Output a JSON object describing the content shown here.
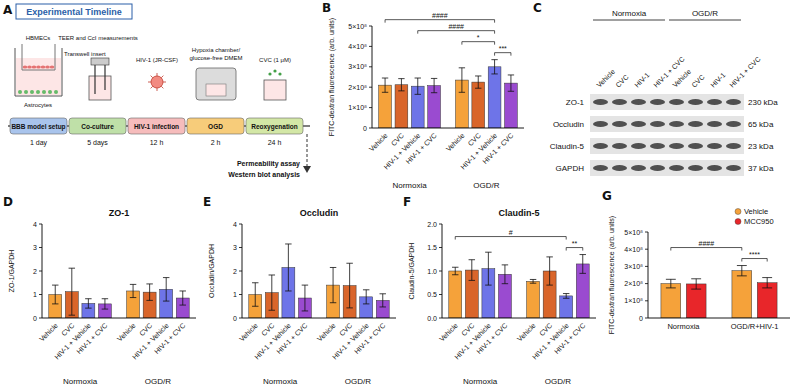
{
  "timeline": {
    "panel": "A",
    "title": "Experimental Timeline",
    "steps": [
      {
        "label": "BBB model setup",
        "duration": "1 day"
      },
      {
        "label": "Co-culture",
        "duration": "5 days"
      },
      {
        "label": "HIV-1 infection",
        "duration": "12 h"
      },
      {
        "label": "OGD",
        "duration": "2 h"
      },
      {
        "label": "Reoxygenation",
        "duration": "24 h"
      }
    ],
    "cells": [
      "HBMECs",
      "Astrocytes"
    ],
    "insert": "Transwell insert",
    "measurement": "TEER and CcI measurements",
    "virus": "HIV-1 (JR-CSF)",
    "hypoxia": [
      "Hypoxia chamber/",
      "glucose-free DMEM"
    ],
    "treatment": "CVC (1 μM)",
    "outputs": [
      "Permeability assay",
      "Western blot analysis"
    ]
  },
  "blot": {
    "panel": "C",
    "groups": [
      "Normoxia",
      "OGD/R"
    ],
    "lanes": [
      "Vehicle",
      "CVC",
      "HIV-1",
      "HIV-1 + CVC",
      "Vehicle",
      "CVC",
      "HIV-1",
      "HIV-1 + CVC"
    ],
    "rows": [
      {
        "protein": "ZO-1",
        "size": "230 kDa"
      },
      {
        "protein": "Occludin",
        "size": "65 kDa"
      },
      {
        "protein": "Claudin-5",
        "size": "23 kDa"
      },
      {
        "protein": "GAPDH",
        "size": "37 kDa"
      }
    ]
  },
  "chart_data": [
    {
      "panel": "B",
      "type": "bar",
      "y_label": "FITC-dextran fluorescence (arb. units)",
      "categories": [
        "Vehicle",
        "CVC",
        "HIV-1 + Vehicle",
        "HIV-1 + CVC",
        "Vehicle",
        "CVC",
        "HIV-1 + Vehicle",
        "HIV-1 + CVC"
      ],
      "groups": [
        "Normoxia",
        "OGD/R"
      ],
      "values": [
        210000000,
        212000000,
        205000000,
        208000000,
        235000000,
        225000000,
        300000000,
        220000000
      ],
      "errors": [
        35000000,
        30000000,
        40000000,
        35000000,
        60000000,
        30000000,
        35000000,
        40000000
      ],
      "colors": [
        "#F5A23A",
        "#D9652A",
        "#6E74E8",
        "#9A4BD0",
        "#F5A23A",
        "#D9652A",
        "#6E74E8",
        "#9A4BD0"
      ],
      "ylim": [
        0,
        500000000
      ],
      "yticks": [
        0,
        {
          "value": 100000000,
          "label": "1×10⁸"
        },
        {
          "value": 200000000,
          "label": "2×10⁸"
        },
        {
          "value": 300000000,
          "label": "3×10⁸"
        },
        {
          "value": 400000000,
          "label": "4×10⁸"
        },
        {
          "value": 500000000,
          "label": "5×10⁸"
        }
      ],
      "annotations": [
        {
          "text": "####",
          "between": [
            0,
            6
          ]
        },
        {
          "text": "####",
          "between": [
            2,
            6
          ]
        },
        {
          "text": "*",
          "between": [
            4,
            6
          ]
        },
        {
          "text": "***",
          "between": [
            6,
            7
          ]
        }
      ]
    },
    {
      "panel": "D",
      "type": "bar",
      "title": "ZO-1",
      "y_label": "ZO-1/GAPDH",
      "categories": [
        "Vehicle",
        "CVC",
        "HIV-1 + Vehicle",
        "HIV-1 + CVC",
        "Vehicle",
        "CVC",
        "HIV-1 + Vehicle",
        "HIV-1 + CVC"
      ],
      "groups": [
        "Normoxia",
        "OGD/R"
      ],
      "values": [
        1.0,
        1.12,
        0.62,
        0.6,
        1.15,
        1.1,
        1.22,
        0.85
      ],
      "errors": [
        0.4,
        1.0,
        0.2,
        0.22,
        0.28,
        0.35,
        0.5,
        0.3
      ],
      "colors": [
        "#F5A23A",
        "#D9652A",
        "#6E74E8",
        "#9A4BD0",
        "#F5A23A",
        "#D9652A",
        "#6E74E8",
        "#9A4BD0"
      ],
      "ylim": [
        0,
        4
      ],
      "yticks": [
        0,
        1,
        2,
        3,
        4
      ]
    },
    {
      "panel": "E",
      "type": "bar",
      "title": "Occludin",
      "y_label": "Occludin/GAPDH",
      "categories": [
        "Vehicle",
        "CVC",
        "HIV-1 + Vehicle",
        "HIV-1 + CVC",
        "Vehicle",
        "CVC",
        "HIV-1 + Vehicle",
        "HIV-1 + CVC"
      ],
      "groups": [
        "Normoxia",
        "OGD/R"
      ],
      "values": [
        1.0,
        1.08,
        2.15,
        0.85,
        1.4,
        1.38,
        0.9,
        0.75
      ],
      "errors": [
        0.5,
        0.75,
        1.0,
        0.55,
        0.75,
        0.95,
        0.3,
        0.28
      ],
      "colors": [
        "#F5A23A",
        "#D9652A",
        "#6E74E8",
        "#9A4BD0",
        "#F5A23A",
        "#D9652A",
        "#6E74E8",
        "#9A4BD0"
      ],
      "ylim": [
        0,
        4
      ],
      "yticks": [
        0,
        1,
        2,
        3,
        4
      ]
    },
    {
      "panel": "F",
      "type": "bar",
      "title": "Claudin-5",
      "y_label": "Claudin-5/GAPDH",
      "categories": [
        "Vehicle",
        "CVC",
        "HIV-1 + Vehicle",
        "HIV-1 + CVC",
        "Vehicle",
        "CVC",
        "HIV-1 + Vehicle",
        "HIV-1 + CVC"
      ],
      "groups": [
        "Normoxia",
        "OGD/R"
      ],
      "values": [
        1.0,
        1.02,
        1.05,
        0.93,
        0.78,
        1.0,
        0.47,
        1.15
      ],
      "errors": [
        0.08,
        0.22,
        0.35,
        0.2,
        0.04,
        0.3,
        0.05,
        0.2
      ],
      "colors": [
        "#F5A23A",
        "#D9652A",
        "#6E74E8",
        "#9A4BD0",
        "#F5A23A",
        "#D9652A",
        "#6E74E8",
        "#9A4BD0"
      ],
      "ylim": [
        0,
        2
      ],
      "yticks": [
        {
          "value": 0,
          "label": "0.0"
        },
        0.5,
        {
          "value": 1,
          "label": "1.0"
        },
        1.5,
        {
          "value": 2,
          "label": "2.0"
        }
      ],
      "annotations": [
        {
          "text": "#",
          "between": [
            0,
            6
          ]
        },
        {
          "text": "**",
          "between": [
            6,
            7
          ]
        }
      ]
    },
    {
      "panel": "G",
      "type": "bar",
      "y_label": "FITC-dextran fluorescence (arb. units)",
      "categories": [
        "Normoxia",
        "OGD/R+HIV-1"
      ],
      "series": [
        {
          "name": "Vehicle",
          "color": "#F5A23A",
          "values": [
            200000000,
            275000000
          ],
          "errors": [
            25000000,
            30000000
          ]
        },
        {
          "name": "MCC950",
          "color": "#E8262A",
          "values": [
            198000000,
            205000000
          ],
          "errors": [
            30000000,
            30000000
          ]
        }
      ],
      "legend": "top-right",
      "ylim": [
        0,
        500000000
      ],
      "yticks": [
        0,
        {
          "value": 100000000,
          "label": "1×10⁸"
        },
        {
          "value": 200000000,
          "label": "2×10⁸"
        },
        {
          "value": 300000000,
          "label": "3×10⁸"
        },
        {
          "value": 400000000,
          "label": "4×10⁸"
        },
        {
          "value": 500000000,
          "label": "5×10⁸"
        }
      ],
      "annotations": [
        {
          "text": "####",
          "between": [
            0,
            2
          ]
        },
        {
          "text": "****",
          "between": [
            2,
            3
          ]
        }
      ]
    }
  ]
}
